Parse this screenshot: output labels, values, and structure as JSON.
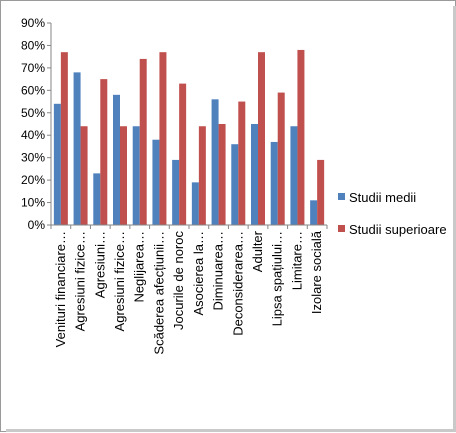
{
  "chart_data": {
    "type": "bar",
    "title": "",
    "xlabel": "",
    "ylabel": "",
    "ylim": [
      0,
      90
    ],
    "yticks": [
      "0%",
      "10%",
      "20%",
      "30%",
      "40%",
      "50%",
      "60%",
      "70%",
      "80%",
      "90%"
    ],
    "grid": false,
    "legend_position": "right",
    "categories": [
      "Venituri financiare…",
      "Agresiuni fizice…",
      "Agresiuni…",
      "Agresiuni fizice…",
      "Neglijarea…",
      "Scăderea afecțiunii…",
      "Jocurile de noroc",
      "Asocierea la…",
      "Diminuarea…",
      "Deconsiderarea…",
      "Adulter",
      "Lipsa spațiului…",
      "Limitare…",
      "Izolare socială"
    ],
    "series": [
      {
        "name": "Studii medii",
        "color": "#4f81bd",
        "values": [
          54,
          68,
          23,
          58,
          44,
          38,
          29,
          19,
          56,
          36,
          45,
          37,
          44,
          11
        ]
      },
      {
        "name": "Studii superioare",
        "color": "#c0504d",
        "values": [
          77,
          44,
          65,
          44,
          74,
          77,
          63,
          44,
          45,
          55,
          77,
          59,
          78,
          29
        ]
      }
    ]
  }
}
